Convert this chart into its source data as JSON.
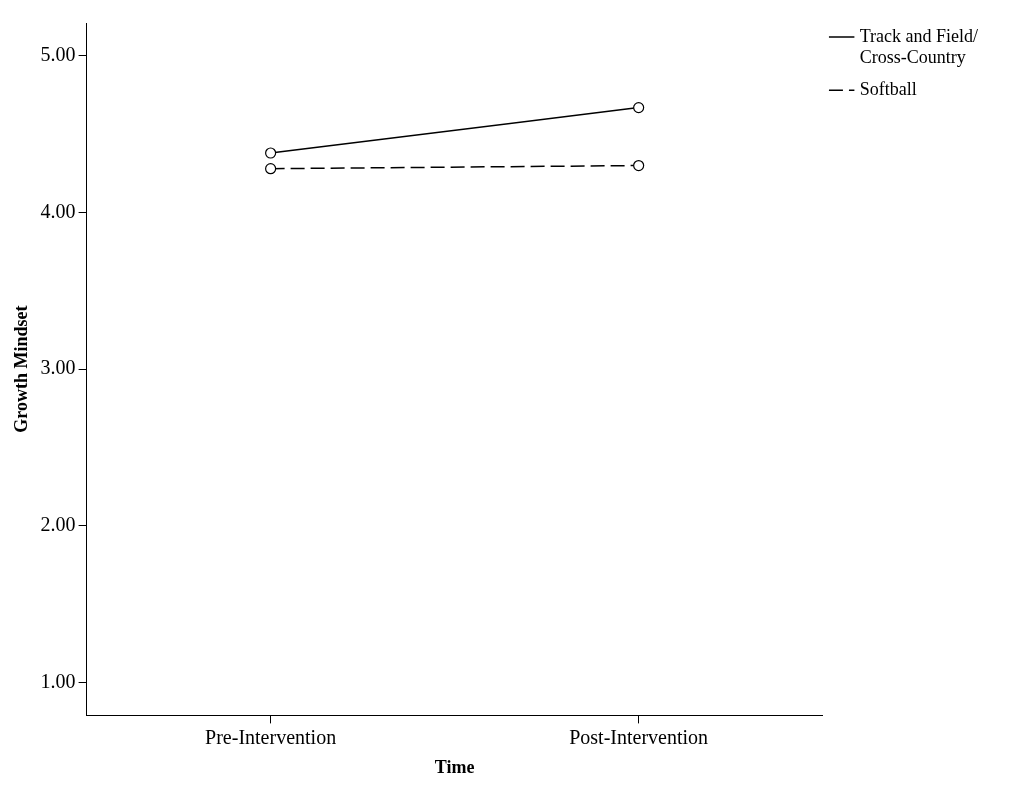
{
  "chart_data": {
    "type": "line",
    "xlabel": "Time",
    "ylabel": "Growth Mindset",
    "categories": [
      "Pre-Intervention",
      "Post-Intervention"
    ],
    "series": [
      {
        "name": "Track and Field/\nCross-Country",
        "color": "#000000",
        "values": [
          4.38,
          4.67
        ],
        "line_style": "solid"
      },
      {
        "name": "Softball",
        "color": "#000000",
        "values": [
          4.28,
          4.3
        ],
        "line_style": "dashed"
      }
    ],
    "ylim": [
      0.79,
      5.21
    ],
    "yticks": [
      {
        "value": 1,
        "label": "1.00"
      },
      {
        "value": 2,
        "label": "2.00"
      },
      {
        "value": 3,
        "label": "3.00"
      },
      {
        "value": 4,
        "label": "4.00"
      },
      {
        "value": 5,
        "label": "5.00"
      }
    ],
    "grid": false,
    "legend": "top right",
    "marker": "circle"
  }
}
